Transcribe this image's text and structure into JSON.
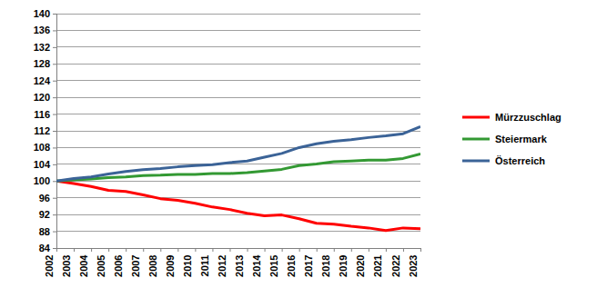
{
  "chart_data": {
    "type": "line",
    "categories": [
      "2002",
      "2003",
      "2004",
      "2005",
      "2006",
      "2007",
      "2008",
      "2009",
      "2010",
      "2011",
      "2012",
      "2013",
      "2014",
      "2015",
      "2016",
      "2017",
      "2018",
      "2019",
      "2020",
      "2021",
      "2022",
      "2023"
    ],
    "series": [
      {
        "name": "Mürzzuschlag",
        "color": "#ff0000",
        "values": [
          100,
          99.4,
          98.7,
          97.8,
          97.5,
          96.7,
          95.8,
          95.4,
          94.7,
          93.8,
          93.2,
          92.3,
          91.7,
          91.9,
          91.0,
          89.9,
          89.7,
          89.2,
          88.8,
          88.2,
          88.8,
          88.6
        ]
      },
      {
        "name": "Steiermark",
        "color": "#339933",
        "values": [
          100,
          100.3,
          100.5,
          100.8,
          101.0,
          101.3,
          101.4,
          101.6,
          101.6,
          101.8,
          101.8,
          102.0,
          102.4,
          102.8,
          103.7,
          104.1,
          104.6,
          104.8,
          105.0,
          105.0,
          105.4,
          106.5
        ]
      },
      {
        "name": "Österreich",
        "color": "#3b6397",
        "values": [
          100,
          100.6,
          101.0,
          101.7,
          102.3,
          102.7,
          103.0,
          103.4,
          103.7,
          103.9,
          104.4,
          104.8,
          105.7,
          106.6,
          108.0,
          108.9,
          109.5,
          109.9,
          110.4,
          110.8,
          111.3,
          113.0
        ]
      }
    ],
    "ylim": [
      84,
      140
    ],
    "yticks": [
      84,
      88,
      92,
      96,
      100,
      104,
      108,
      112,
      116,
      120,
      124,
      128,
      132,
      136,
      140
    ],
    "grid": true,
    "legend": "right"
  }
}
